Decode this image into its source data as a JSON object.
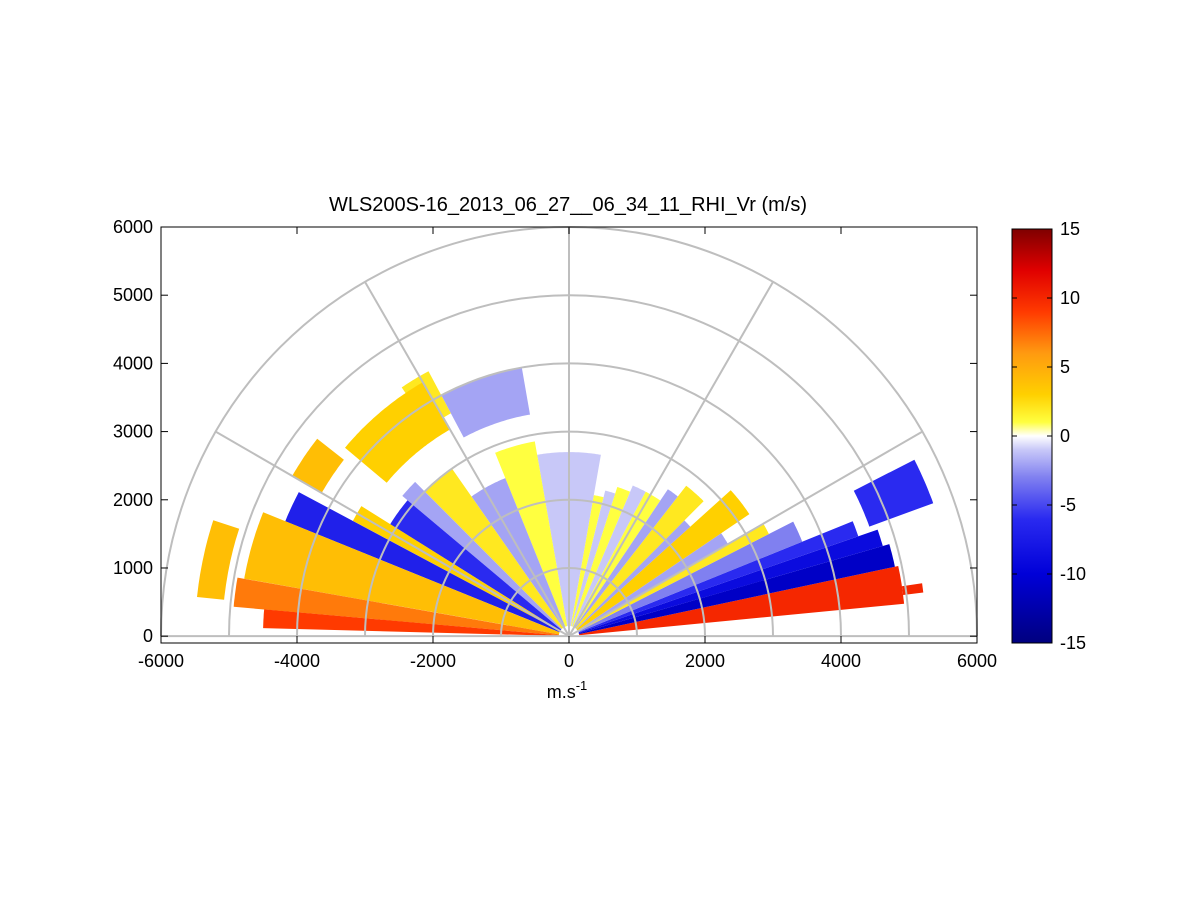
{
  "chart_data": {
    "type": "heatmap",
    "subtype": "polar-rhi-sector",
    "title": "WLS200S-16_2013_06_27__06_34_11_RHI_Vr (m/s)",
    "xlabel_base": "m.s",
    "xlabel_sup": "-1",
    "ylabel": "",
    "xlim": [
      -6000,
      6000
    ],
    "ylim": [
      -100,
      6000
    ],
    "xticks": [
      -6000,
      -4000,
      -2000,
      0,
      2000,
      4000,
      6000
    ],
    "yticks": [
      0,
      1000,
      2000,
      3000,
      4000,
      5000,
      6000
    ],
    "polar_grid": {
      "range_rings": [
        1000,
        2000,
        3000,
        4000,
        5000,
        6000
      ],
      "angle_spokes_deg": [
        0,
        30,
        60,
        90,
        120,
        150,
        180
      ],
      "color": "#bebebe"
    },
    "colorbar": {
      "label": "",
      "limits": [
        -15,
        15
      ],
      "ticks": [
        -15,
        -10,
        -5,
        0,
        5,
        10,
        15
      ],
      "colormap": [
        [
          -15,
          "#00007f"
        ],
        [
          -10,
          "#0000d8"
        ],
        [
          -6,
          "#2a2af0"
        ],
        [
          -3,
          "#8080f0"
        ],
        [
          -1,
          "#c8c8f8"
        ],
        [
          0,
          "#ffffff"
        ],
        [
          1,
          "#ffff40"
        ],
        [
          3,
          "#ffd000"
        ],
        [
          6,
          "#ff9a10"
        ],
        [
          9,
          "#ff3a00"
        ],
        [
          12,
          "#e00000"
        ],
        [
          15,
          "#7f0000"
        ]
      ]
    },
    "sectors": [
      {
        "az": [
          5.5,
          12
        ],
        "r": [
          150,
          4950
        ],
        "v": 10
      },
      {
        "az": [
          7,
          8.5
        ],
        "r": [
          4950,
          5250
        ],
        "v": 10
      },
      {
        "az": [
          12,
          16
        ],
        "r": [
          150,
          4900
        ],
        "v": -11
      },
      {
        "az": [
          16,
          19
        ],
        "r": [
          150,
          4800
        ],
        "v": -9
      },
      {
        "az": [
          19,
          22
        ],
        "r": [
          150,
          4500
        ],
        "v": -6
      },
      {
        "az": [
          22,
          27
        ],
        "r": [
          150,
          3700
        ],
        "v": -3
      },
      {
        "az": [
          27,
          30
        ],
        "r": [
          150,
          3300
        ],
        "v": 2
      },
      {
        "az": [
          30,
          34
        ],
        "r": [
          150,
          2700
        ],
        "v": -2
      },
      {
        "az": [
          34,
          42
        ],
        "r": [
          150,
          3200
        ],
        "v": 3
      },
      {
        "az": [
          42,
          45
        ],
        "r": [
          150,
          2400
        ],
        "v": -2
      },
      {
        "az": [
          45,
          52
        ],
        "r": [
          150,
          2800
        ],
        "v": 2
      },
      {
        "az": [
          52,
          56
        ],
        "r": [
          150,
          2600
        ],
        "v": -2
      },
      {
        "az": [
          56,
          62
        ],
        "r": [
          150,
          2400
        ],
        "v": 1
      },
      {
        "az": [
          62,
          67
        ],
        "r": [
          150,
          2400
        ],
        "v": -1
      },
      {
        "az": [
          67,
          72
        ],
        "r": [
          150,
          2300
        ],
        "v": 1
      },
      {
        "az": [
          72,
          76
        ],
        "r": [
          150,
          2200
        ],
        "v": -1
      },
      {
        "az": [
          76,
          80
        ],
        "r": [
          150,
          2100
        ],
        "v": 1
      },
      {
        "az": [
          80,
          100
        ],
        "r": [
          150,
          2700
        ],
        "v": -1
      },
      {
        "az": [
          100,
          112
        ],
        "r": [
          150,
          2900
        ],
        "v": 1
      },
      {
        "az": [
          112,
          125
        ],
        "r": [
          150,
          2500
        ],
        "v": -2
      },
      {
        "az": [
          125,
          135
        ],
        "r": [
          150,
          3000
        ],
        "v": 2
      },
      {
        "az": [
          135,
          140
        ],
        "r": [
          150,
          3200
        ],
        "v": -2
      },
      {
        "az": [
          140,
          148
        ],
        "r": [
          150,
          3100
        ],
        "v": -6
      },
      {
        "az": [
          148,
          152
        ],
        "r": [
          150,
          3600
        ],
        "v": 3
      },
      {
        "az": [
          152,
          158
        ],
        "r": [
          150,
          4500
        ],
        "v": -7
      },
      {
        "az": [
          158,
          170
        ],
        "r": [
          150,
          4850
        ],
        "v": 4
      },
      {
        "az": [
          170,
          175
        ],
        "r": [
          150,
          4950
        ],
        "v": 7
      },
      {
        "az": [
          175,
          178.5
        ],
        "r": [
          150,
          4500
        ],
        "v": 9
      },
      {
        "az": [
          20,
          27
        ],
        "r": [
          4700,
          5700
        ],
        "v": -6
      },
      {
        "az": [
          100,
          118
        ],
        "r": [
          3300,
          4000
        ],
        "v": -2
      },
      {
        "az": [
          118,
          124
        ],
        "r": [
          3700,
          4400
        ],
        "v": 2
      },
      {
        "az": [
          120,
          140
        ],
        "r": [
          3500,
          4300
        ],
        "v": 3
      },
      {
        "az": [
          142,
          150
        ],
        "r": [
          4200,
          4700
        ],
        "v": 4
      },
      {
        "az": [
          162,
          174
        ],
        "r": [
          5100,
          5500
        ],
        "v": 4
      }
    ]
  }
}
